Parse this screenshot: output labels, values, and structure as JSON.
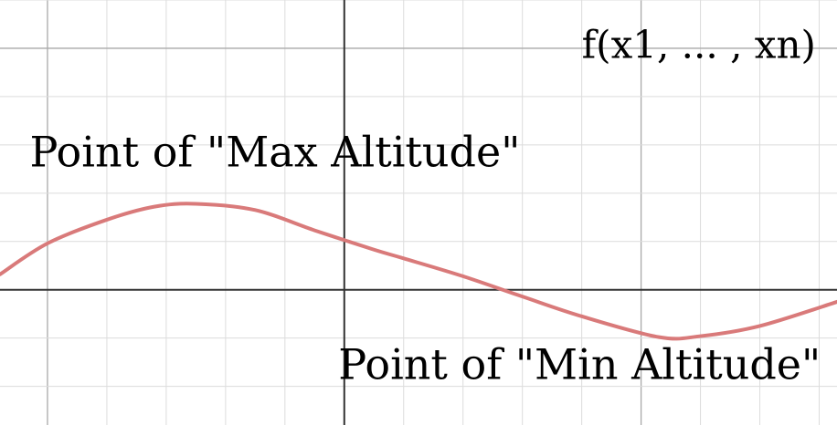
{
  "chart_data": {
    "type": "line",
    "title": "",
    "xlabel": "",
    "ylabel": "",
    "xlim": [
      -5.8,
      8.3
    ],
    "ylim": [
      -2.8,
      6.0
    ],
    "grid": true,
    "series": [
      {
        "color": "#d97a7a",
        "x": [
          -5.8,
          -5.0,
          -4.0,
          -3.2,
          -2.5,
          -1.5,
          -0.5,
          0.5,
          1.0,
          2.0,
          3.0,
          4.0,
          5.3,
          6.0,
          7.0,
          8.3
        ],
        "y": [
          0.32,
          0.96,
          1.45,
          1.72,
          1.78,
          1.65,
          1.23,
          0.83,
          0.65,
          0.28,
          -0.14,
          -0.55,
          -0.98,
          -0.96,
          -0.75,
          -0.25
        ]
      }
    ],
    "annotations": [
      {
        "text": "f(x1, ... , xn)",
        "x": 4.0,
        "y": 4.8
      },
      {
        "text": "Point of \"Max Altitude\"",
        "x": -5.3,
        "y": 2.55
      },
      {
        "text": "Point of \"Min Altitude\"",
        "x": -0.1,
        "y": -1.85
      }
    ]
  }
}
